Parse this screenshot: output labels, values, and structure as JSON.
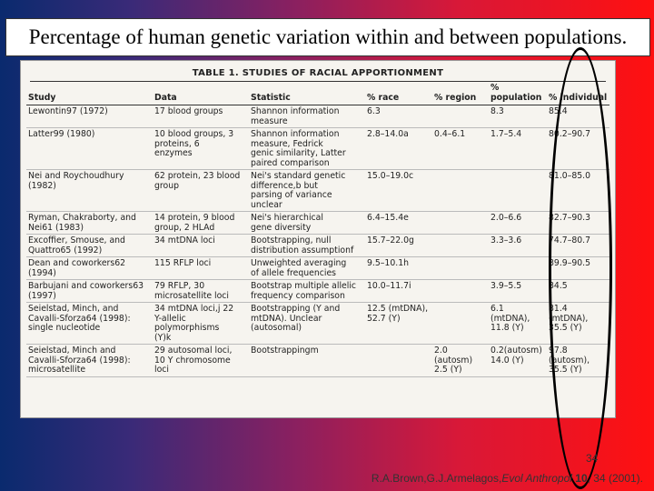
{
  "slide": {
    "title": "Percentage of human genetic variation within and between populations.",
    "page_number": "34",
    "citation": {
      "authors": "R.A.Brown,G.J.Armelagos,",
      "journal": "Evol Anthropol",
      "volume": "10",
      "pages": ", 34 (2001)."
    }
  },
  "table": {
    "title": "TABLE 1.  STUDIES OF RACIAL APPORTIONMENT",
    "headers": [
      "Study",
      "Data",
      "Statistic",
      "% race",
      "% region",
      "%\npopulation",
      "% individual"
    ],
    "rows": [
      [
        "Lewontin97 (1972)",
        "17 blood groups",
        "Shannon information\nmeasure",
        "6.3",
        "",
        "8.3",
        "85.4"
      ],
      [
        "Latter99 (1980)",
        "10 blood groups, 3\nproteins, 6\nenzymes",
        "Shannon information\nmeasure, Fedrick\ngenic similarity, Latter\npaired comparison",
        "2.8–14.0a",
        "0.4–6.1",
        "1.7–5.4",
        "80.2–90.7"
      ],
      [
        "Nei and Roychoudhury\n(1982)",
        "62 protein, 23 blood\ngroup",
        "Nei's standard genetic\ndifference,b but\nparsing of variance\nunclear",
        "15.0–19.0c",
        "",
        "",
        "81.0–85.0"
      ],
      [
        "Ryman, Chakraborty, and\nNei61 (1983)",
        "14 protein, 9 blood\ngroup, 2 HLAd",
        "Nei's hierarchical\ngene diversity",
        "6.4–15.4e",
        "",
        "2.0–6.6",
        "82.7–90.3"
      ],
      [
        "Excoffier, Smouse, and\nQuattro65 (1992)",
        "34 mtDNA loci",
        "Bootstrapping, null\ndistribution assumptionf",
        "15.7–22.0g",
        "",
        "3.3–3.6",
        "74.7–80.7"
      ],
      [
        "Dean and coworkers62\n(1994)",
        "115 RFLP loci",
        "Unweighted averaging\nof allele frequencies",
        "9.5–10.1h",
        "",
        "",
        "89.9–90.5"
      ],
      [
        "Barbujani and coworkers63\n(1997)",
        "79 RFLP, 30\nmicrosatellite loci",
        "Bootstrap multiple allelic\nfrequency comparison",
        "10.0–11.7i",
        "",
        "3.9–5.5",
        "84.5"
      ],
      [
        "Seielstad, Minch, and\nCavalli-Sforza64 (1998):\nsingle nucleotide",
        "34 mtDNA loci,j 22\nY-allelic\npolymorphisms\n(Y)k",
        "Bootstrapping (Y and\nmtDNA). Unclear\n(autosomal)",
        "12.5 (mtDNA),\n52.7 (Y)",
        "",
        "6.1\n(mtDNA),\n11.8 (Y)",
        "81.4 (mtDNA),\n35.5 (Y)"
      ],
      [
        "Seielstad, Minch and\nCavalli-Sforza64 (1998):\nmicrosatellite",
        "29 autosomal loci,\n10 Y chromosome\nloci",
        "Bootstrappingm",
        "",
        "2.0\n(autosm)\n2.5 (Y)",
        "0.2(autosm)\n14.0 (Y)",
        "97.8\n(autosm),\n35.5 (Y)"
      ]
    ]
  }
}
